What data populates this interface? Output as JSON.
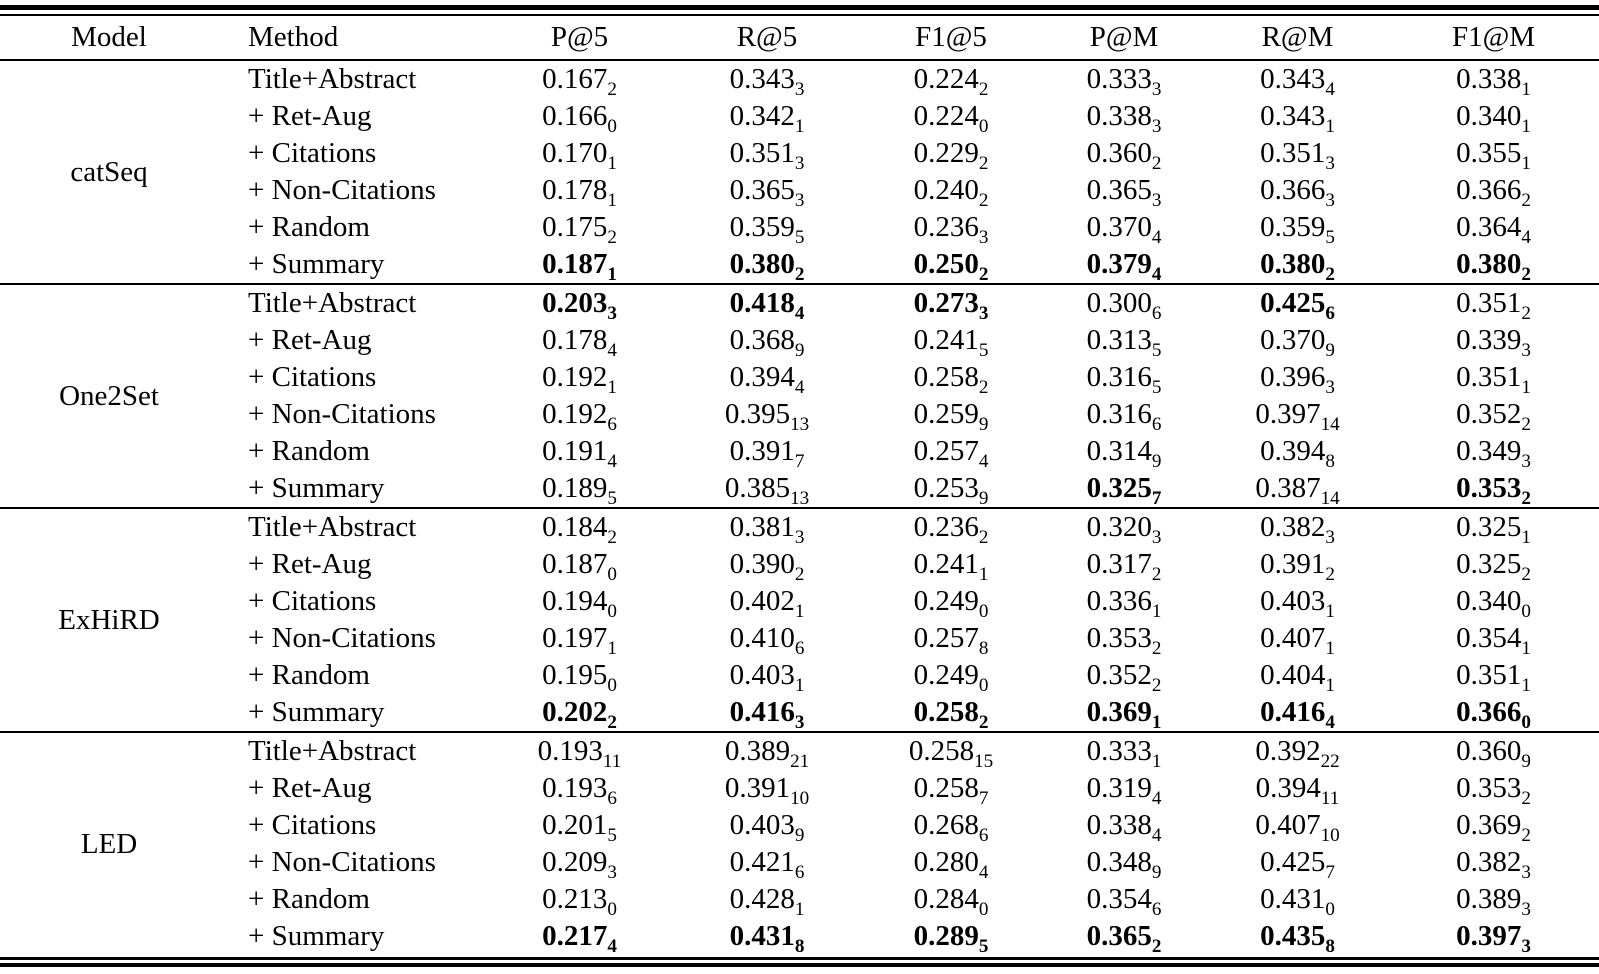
{
  "table": {
    "columns": [
      "Model",
      "Method",
      "P@5",
      "R@5",
      "F1@5",
      "P@M",
      "R@M",
      "F1@M"
    ],
    "groups": [
      {
        "model": "catSeq",
        "rows": [
          {
            "method": "Title+Abstract",
            "cells": [
              [
                "0.167",
                "2",
                0
              ],
              [
                "0.343",
                "3",
                0
              ],
              [
                "0.224",
                "2",
                0
              ],
              [
                "0.333",
                "3",
                0
              ],
              [
                "0.343",
                "4",
                0
              ],
              [
                "0.338",
                "1",
                0
              ]
            ]
          },
          {
            "method": "+ Ret-Aug",
            "cells": [
              [
                "0.166",
                "0",
                0
              ],
              [
                "0.342",
                "1",
                0
              ],
              [
                "0.224",
                "0",
                0
              ],
              [
                "0.338",
                "3",
                0
              ],
              [
                "0.343",
                "1",
                0
              ],
              [
                "0.340",
                "1",
                0
              ]
            ]
          },
          {
            "method": "+ Citations",
            "cells": [
              [
                "0.170",
                "1",
                0
              ],
              [
                "0.351",
                "3",
                0
              ],
              [
                "0.229",
                "2",
                0
              ],
              [
                "0.360",
                "2",
                0
              ],
              [
                "0.351",
                "3",
                0
              ],
              [
                "0.355",
                "1",
                0
              ]
            ]
          },
          {
            "method": "+ Non-Citations",
            "cells": [
              [
                "0.178",
                "1",
                0
              ],
              [
                "0.365",
                "3",
                0
              ],
              [
                "0.240",
                "2",
                0
              ],
              [
                "0.365",
                "3",
                0
              ],
              [
                "0.366",
                "3",
                0
              ],
              [
                "0.366",
                "2",
                0
              ]
            ]
          },
          {
            "method": "+ Random",
            "cells": [
              [
                "0.175",
                "2",
                0
              ],
              [
                "0.359",
                "5",
                0
              ],
              [
                "0.236",
                "3",
                0
              ],
              [
                "0.370",
                "4",
                0
              ],
              [
                "0.359",
                "5",
                0
              ],
              [
                "0.364",
                "4",
                0
              ]
            ]
          },
          {
            "method": "+ Summary",
            "cells": [
              [
                "0.187",
                "1",
                1
              ],
              [
                "0.380",
                "2",
                1
              ],
              [
                "0.250",
                "2",
                1
              ],
              [
                "0.379",
                "4",
                1
              ],
              [
                "0.380",
                "2",
                1
              ],
              [
                "0.380",
                "2",
                1
              ]
            ]
          }
        ]
      },
      {
        "model": "One2Set",
        "rows": [
          {
            "method": "Title+Abstract",
            "cells": [
              [
                "0.203",
                "3",
                1
              ],
              [
                "0.418",
                "4",
                1
              ],
              [
                "0.273",
                "3",
                1
              ],
              [
                "0.300",
                "6",
                0
              ],
              [
                "0.425",
                "6",
                1
              ],
              [
                "0.351",
                "2",
                0
              ]
            ]
          },
          {
            "method": "+ Ret-Aug",
            "cells": [
              [
                "0.178",
                "4",
                0
              ],
              [
                "0.368",
                "9",
                0
              ],
              [
                "0.241",
                "5",
                0
              ],
              [
                "0.313",
                "5",
                0
              ],
              [
                "0.370",
                "9",
                0
              ],
              [
                "0.339",
                "3",
                0
              ]
            ]
          },
          {
            "method": "+ Citations",
            "cells": [
              [
                "0.192",
                "1",
                0
              ],
              [
                "0.394",
                "4",
                0
              ],
              [
                "0.258",
                "2",
                0
              ],
              [
                "0.316",
                "5",
                0
              ],
              [
                "0.396",
                "3",
                0
              ],
              [
                "0.351",
                "1",
                0
              ]
            ]
          },
          {
            "method": "+ Non-Citations",
            "cells": [
              [
                "0.192",
                "6",
                0
              ],
              [
                "0.395",
                "13",
                0
              ],
              [
                "0.259",
                "9",
                0
              ],
              [
                "0.316",
                "6",
                0
              ],
              [
                "0.397",
                "14",
                0
              ],
              [
                "0.352",
                "2",
                0
              ]
            ]
          },
          {
            "method": "+ Random",
            "cells": [
              [
                "0.191",
                "4",
                0
              ],
              [
                "0.391",
                "7",
                0
              ],
              [
                "0.257",
                "4",
                0
              ],
              [
                "0.314",
                "9",
                0
              ],
              [
                "0.394",
                "8",
                0
              ],
              [
                "0.349",
                "3",
                0
              ]
            ]
          },
          {
            "method": "+ Summary",
            "cells": [
              [
                "0.189",
                "5",
                0
              ],
              [
                "0.385",
                "13",
                0
              ],
              [
                "0.253",
                "9",
                0
              ],
              [
                "0.325",
                "7",
                1
              ],
              [
                "0.387",
                "14",
                0
              ],
              [
                "0.353",
                "2",
                1
              ]
            ]
          }
        ]
      },
      {
        "model": "ExHiRD",
        "rows": [
          {
            "method": "Title+Abstract",
            "cells": [
              [
                "0.184",
                "2",
                0
              ],
              [
                "0.381",
                "3",
                0
              ],
              [
                "0.236",
                "2",
                0
              ],
              [
                "0.320",
                "3",
                0
              ],
              [
                "0.382",
                "3",
                0
              ],
              [
                "0.325",
                "1",
                0
              ]
            ]
          },
          {
            "method": "+ Ret-Aug",
            "cells": [
              [
                "0.187",
                "0",
                0
              ],
              [
                "0.390",
                "2",
                0
              ],
              [
                "0.241",
                "1",
                0
              ],
              [
                "0.317",
                "2",
                0
              ],
              [
                "0.391",
                "2",
                0
              ],
              [
                "0.325",
                "2",
                0
              ]
            ]
          },
          {
            "method": "+ Citations",
            "cells": [
              [
                "0.194",
                "0",
                0
              ],
              [
                "0.402",
                "1",
                0
              ],
              [
                "0.249",
                "0",
                0
              ],
              [
                "0.336",
                "1",
                0
              ],
              [
                "0.403",
                "1",
                0
              ],
              [
                "0.340",
                "0",
                0
              ]
            ]
          },
          {
            "method": "+ Non-Citations",
            "cells": [
              [
                "0.197",
                "1",
                0
              ],
              [
                "0.410",
                "6",
                0
              ],
              [
                "0.257",
                "8",
                0
              ],
              [
                "0.353",
                "2",
                0
              ],
              [
                "0.407",
                "1",
                0
              ],
              [
                "0.354",
                "1",
                0
              ]
            ]
          },
          {
            "method": "+ Random",
            "cells": [
              [
                "0.195",
                "0",
                0
              ],
              [
                "0.403",
                "1",
                0
              ],
              [
                "0.249",
                "0",
                0
              ],
              [
                "0.352",
                "2",
                0
              ],
              [
                "0.404",
                "1",
                0
              ],
              [
                "0.351",
                "1",
                0
              ]
            ]
          },
          {
            "method": "+ Summary",
            "cells": [
              [
                "0.202",
                "2",
                1
              ],
              [
                "0.416",
                "3",
                1
              ],
              [
                "0.258",
                "2",
                1
              ],
              [
                "0.369",
                "1",
                1
              ],
              [
                "0.416",
                "4",
                1
              ],
              [
                "0.366",
                "0",
                1
              ]
            ]
          }
        ]
      },
      {
        "model": "LED",
        "rows": [
          {
            "method": "Title+Abstract",
            "cells": [
              [
                "0.193",
                "11",
                0
              ],
              [
                "0.389",
                "21",
                0
              ],
              [
                "0.258",
                "15",
                0
              ],
              [
                "0.333",
                "1",
                0
              ],
              [
                "0.392",
                "22",
                0
              ],
              [
                "0.360",
                "9",
                0
              ]
            ]
          },
          {
            "method": "+ Ret-Aug",
            "cells": [
              [
                "0.193",
                "6",
                0
              ],
              [
                "0.391",
                "10",
                0
              ],
              [
                "0.258",
                "7",
                0
              ],
              [
                "0.319",
                "4",
                0
              ],
              [
                "0.394",
                "11",
                0
              ],
              [
                "0.353",
                "2",
                0
              ]
            ]
          },
          {
            "method": "+ Citations",
            "cells": [
              [
                "0.201",
                "5",
                0
              ],
              [
                "0.403",
                "9",
                0
              ],
              [
                "0.268",
                "6",
                0
              ],
              [
                "0.338",
                "4",
                0
              ],
              [
                "0.407",
                "10",
                0
              ],
              [
                "0.369",
                "2",
                0
              ]
            ]
          },
          {
            "method": "+ Non-Citations",
            "cells": [
              [
                "0.209",
                "3",
                0
              ],
              [
                "0.421",
                "6",
                0
              ],
              [
                "0.280",
                "4",
                0
              ],
              [
                "0.348",
                "9",
                0
              ],
              [
                "0.425",
                "7",
                0
              ],
              [
                "0.382",
                "3",
                0
              ]
            ]
          },
          {
            "method": "+ Random",
            "cells": [
              [
                "0.213",
                "0",
                0
              ],
              [
                "0.428",
                "1",
                0
              ],
              [
                "0.284",
                "0",
                0
              ],
              [
                "0.354",
                "6",
                0
              ],
              [
                "0.431",
                "0",
                0
              ],
              [
                "0.389",
                "3",
                0
              ]
            ]
          },
          {
            "method": "+ Summary",
            "cells": [
              [
                "0.217",
                "4",
                1
              ],
              [
                "0.431",
                "8",
                1
              ],
              [
                "0.289",
                "5",
                1
              ],
              [
                "0.365",
                "2",
                1
              ],
              [
                "0.435",
                "8",
                1
              ],
              [
                "0.397",
                "3",
                1
              ]
            ]
          }
        ]
      }
    ]
  }
}
